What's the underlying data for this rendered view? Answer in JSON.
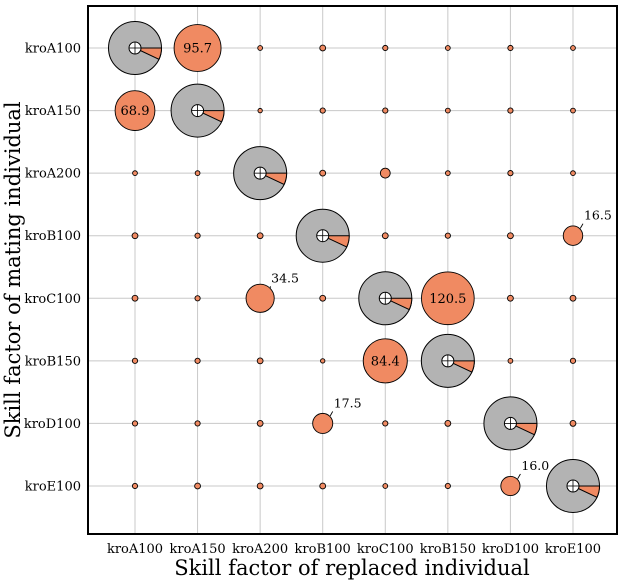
{
  "chart_data": {
    "type": "bubble-matrix",
    "xlabel": "Skill factor of replaced individual",
    "ylabel": "Skill factor of mating individual",
    "x_categories": [
      "kroA100",
      "kroA150",
      "kroA200",
      "kroB100",
      "kroC100",
      "kroB150",
      "kroD100",
      "kroE100"
    ],
    "y_categories": [
      "kroA100",
      "kroA150",
      "kroA200",
      "kroB100",
      "kroC100",
      "kroB150",
      "kroD100",
      "kroE100"
    ],
    "grid": true,
    "colors": {
      "bubble": "#f08a62",
      "diagonal_fill": "#b3b3b3",
      "diagonal_slice": "#f08a62",
      "grid": "#c8c8c8",
      "edge": "#000000"
    },
    "diagonal": {
      "description_free": true,
      "slice_fraction": 0.07
    },
    "values": [
      [
        null,
        95.7,
        1.0,
        1.5,
        1.2,
        1.0,
        1.2,
        1.0
      ],
      [
        68.9,
        null,
        0.8,
        1.2,
        1.2,
        1.0,
        1.2,
        1.0
      ],
      [
        1.0,
        1.0,
        null,
        1.5,
        4.2,
        1.0,
        1.2,
        1.0
      ],
      [
        1.5,
        1.2,
        1.5,
        null,
        1.5,
        1.2,
        1.5,
        16.5
      ],
      [
        1.5,
        1.2,
        34.5,
        1.5,
        null,
        120.5,
        1.5,
        1.5
      ],
      [
        1.2,
        1.2,
        1.5,
        0.8,
        84.4,
        null,
        1.0,
        1.2
      ],
      [
        1.2,
        1.2,
        1.5,
        17.5,
        1.2,
        1.5,
        null,
        1.5
      ],
      [
        1.2,
        1.5,
        1.5,
        1.5,
        1.0,
        1.2,
        16.0,
        null
      ]
    ],
    "labels": [
      {
        "row": 0,
        "col": 1,
        "text": "95.7",
        "placement": "inside"
      },
      {
        "row": 1,
        "col": 0,
        "text": "68.9",
        "placement": "inside"
      },
      {
        "row": 4,
        "col": 5,
        "text": "120.5",
        "placement": "inside"
      },
      {
        "row": 5,
        "col": 4,
        "text": "84.4",
        "placement": "inside"
      },
      {
        "row": 4,
        "col": 2,
        "text": "34.5",
        "placement": "callout"
      },
      {
        "row": 3,
        "col": 7,
        "text": "16.5",
        "placement": "callout"
      },
      {
        "row": 6,
        "col": 3,
        "text": "17.5",
        "placement": "callout"
      },
      {
        "row": 7,
        "col": 6,
        "text": "16.0",
        "placement": "callout"
      }
    ]
  }
}
